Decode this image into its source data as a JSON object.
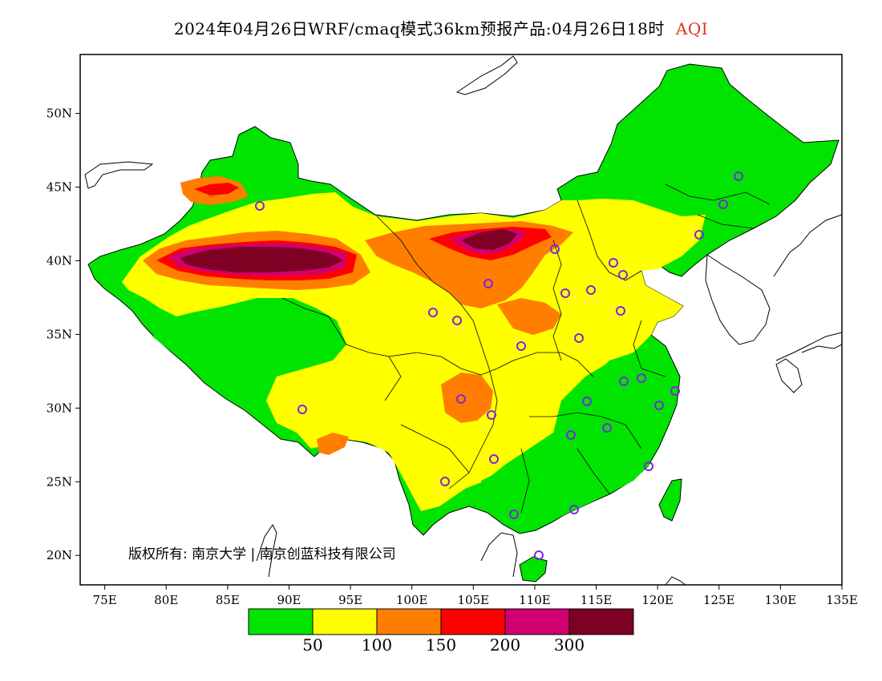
{
  "title": {
    "text": "2024年04月26日WRF/cmaq模式36km预报产品:04月26日18时",
    "variable": "AQI",
    "variable_color": "#e0301e"
  },
  "map": {
    "lon_range": [
      73,
      135
    ],
    "lat_range": [
      18,
      54
    ],
    "x_ticks": [
      "75E",
      "80E",
      "85E",
      "90E",
      "95E",
      "100E",
      "105E",
      "110E",
      "115E",
      "120E",
      "125E",
      "130E",
      "135E"
    ],
    "y_ticks": [
      "50N",
      "45N",
      "40N",
      "35N",
      "30N",
      "25N",
      "20N"
    ],
    "copyright": "版权所有: 南京大学 | 南京创蓝科技有限公司",
    "station_marker_color": "#7a2ad8"
  },
  "legend": {
    "colors": [
      "#00e400",
      "#ffff00",
      "#ff7e00",
      "#ff0000",
      "#d00070",
      "#7e0023"
    ],
    "labels": [
      "50",
      "100",
      "150",
      "200",
      "300"
    ]
  }
}
